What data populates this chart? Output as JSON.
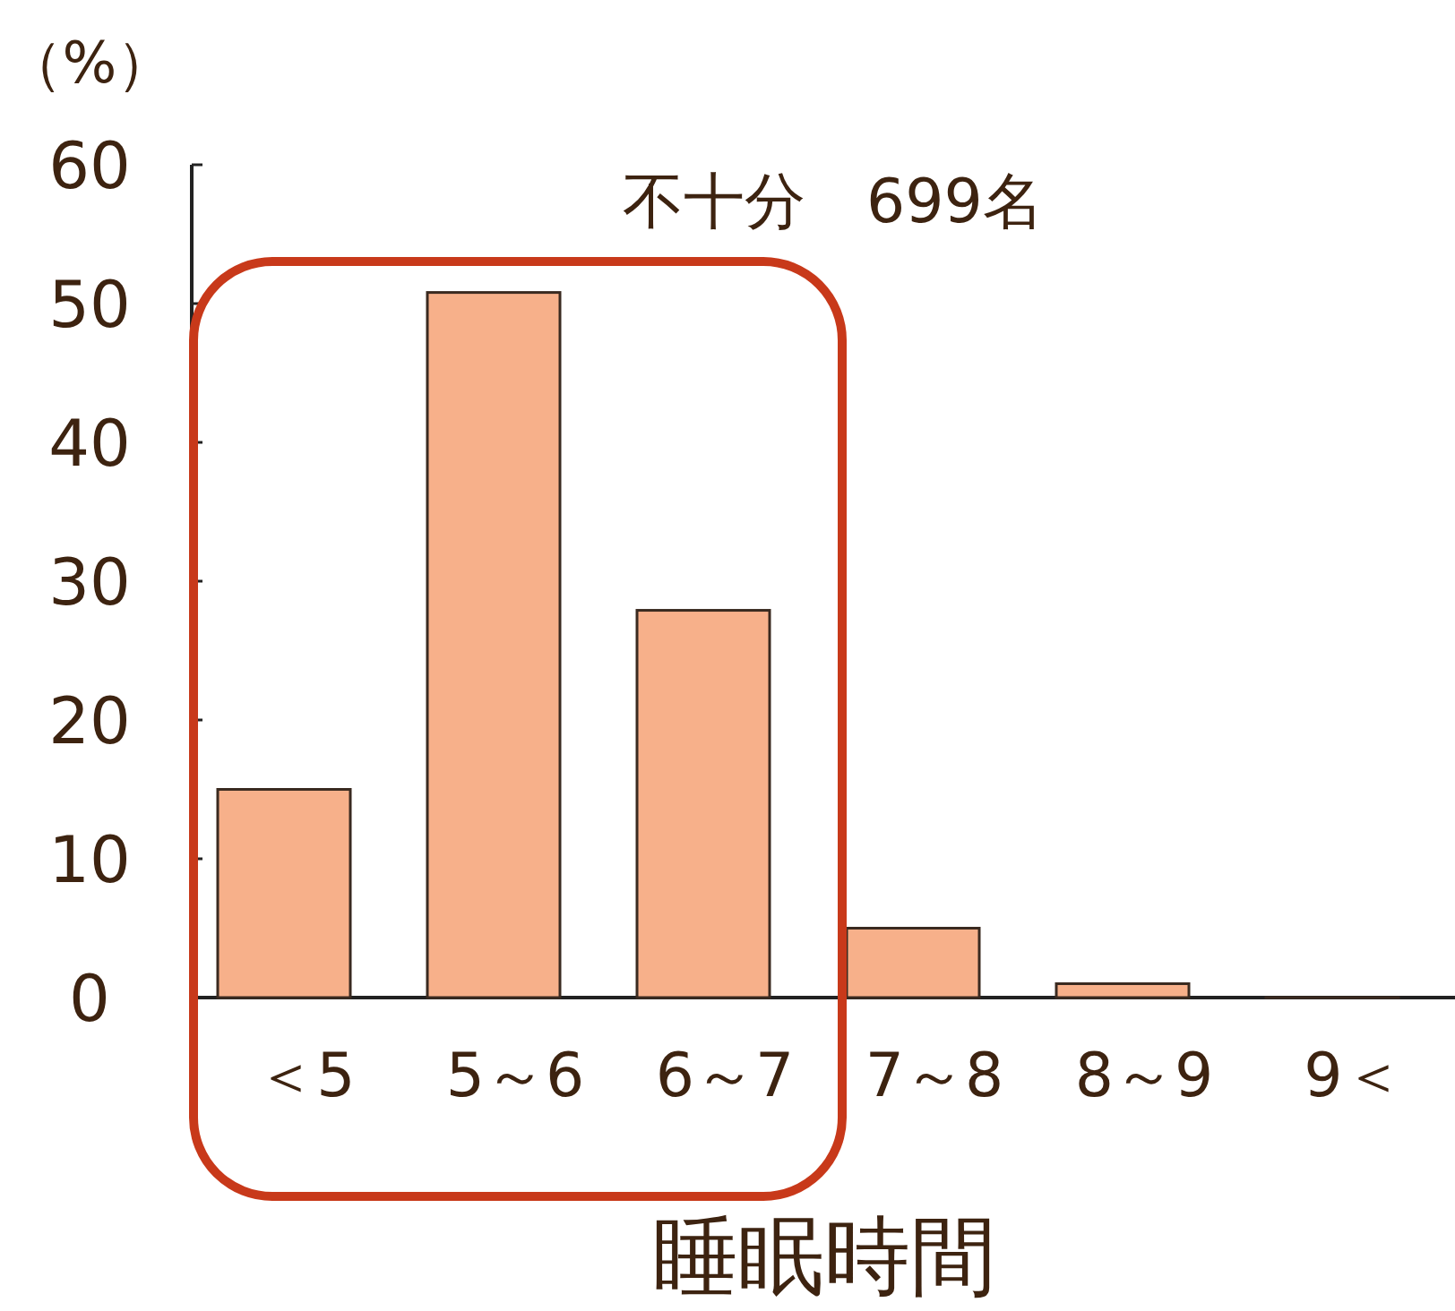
{
  "chart_data": {
    "type": "bar",
    "title": "不十分　699名",
    "ylabel": "（%）",
    "xlabel": "睡眠時間",
    "categories": [
      "＜5",
      "5～6",
      "6～7",
      "7～8",
      "8～9",
      "9＜"
    ],
    "values": [
      15,
      50.8,
      27.9,
      5,
      1,
      0
    ],
    "color": "#f7b08a",
    "ylim": [
      0,
      60
    ],
    "yticks": [
      0,
      10,
      20,
      30,
      40,
      50,
      60
    ]
  }
}
